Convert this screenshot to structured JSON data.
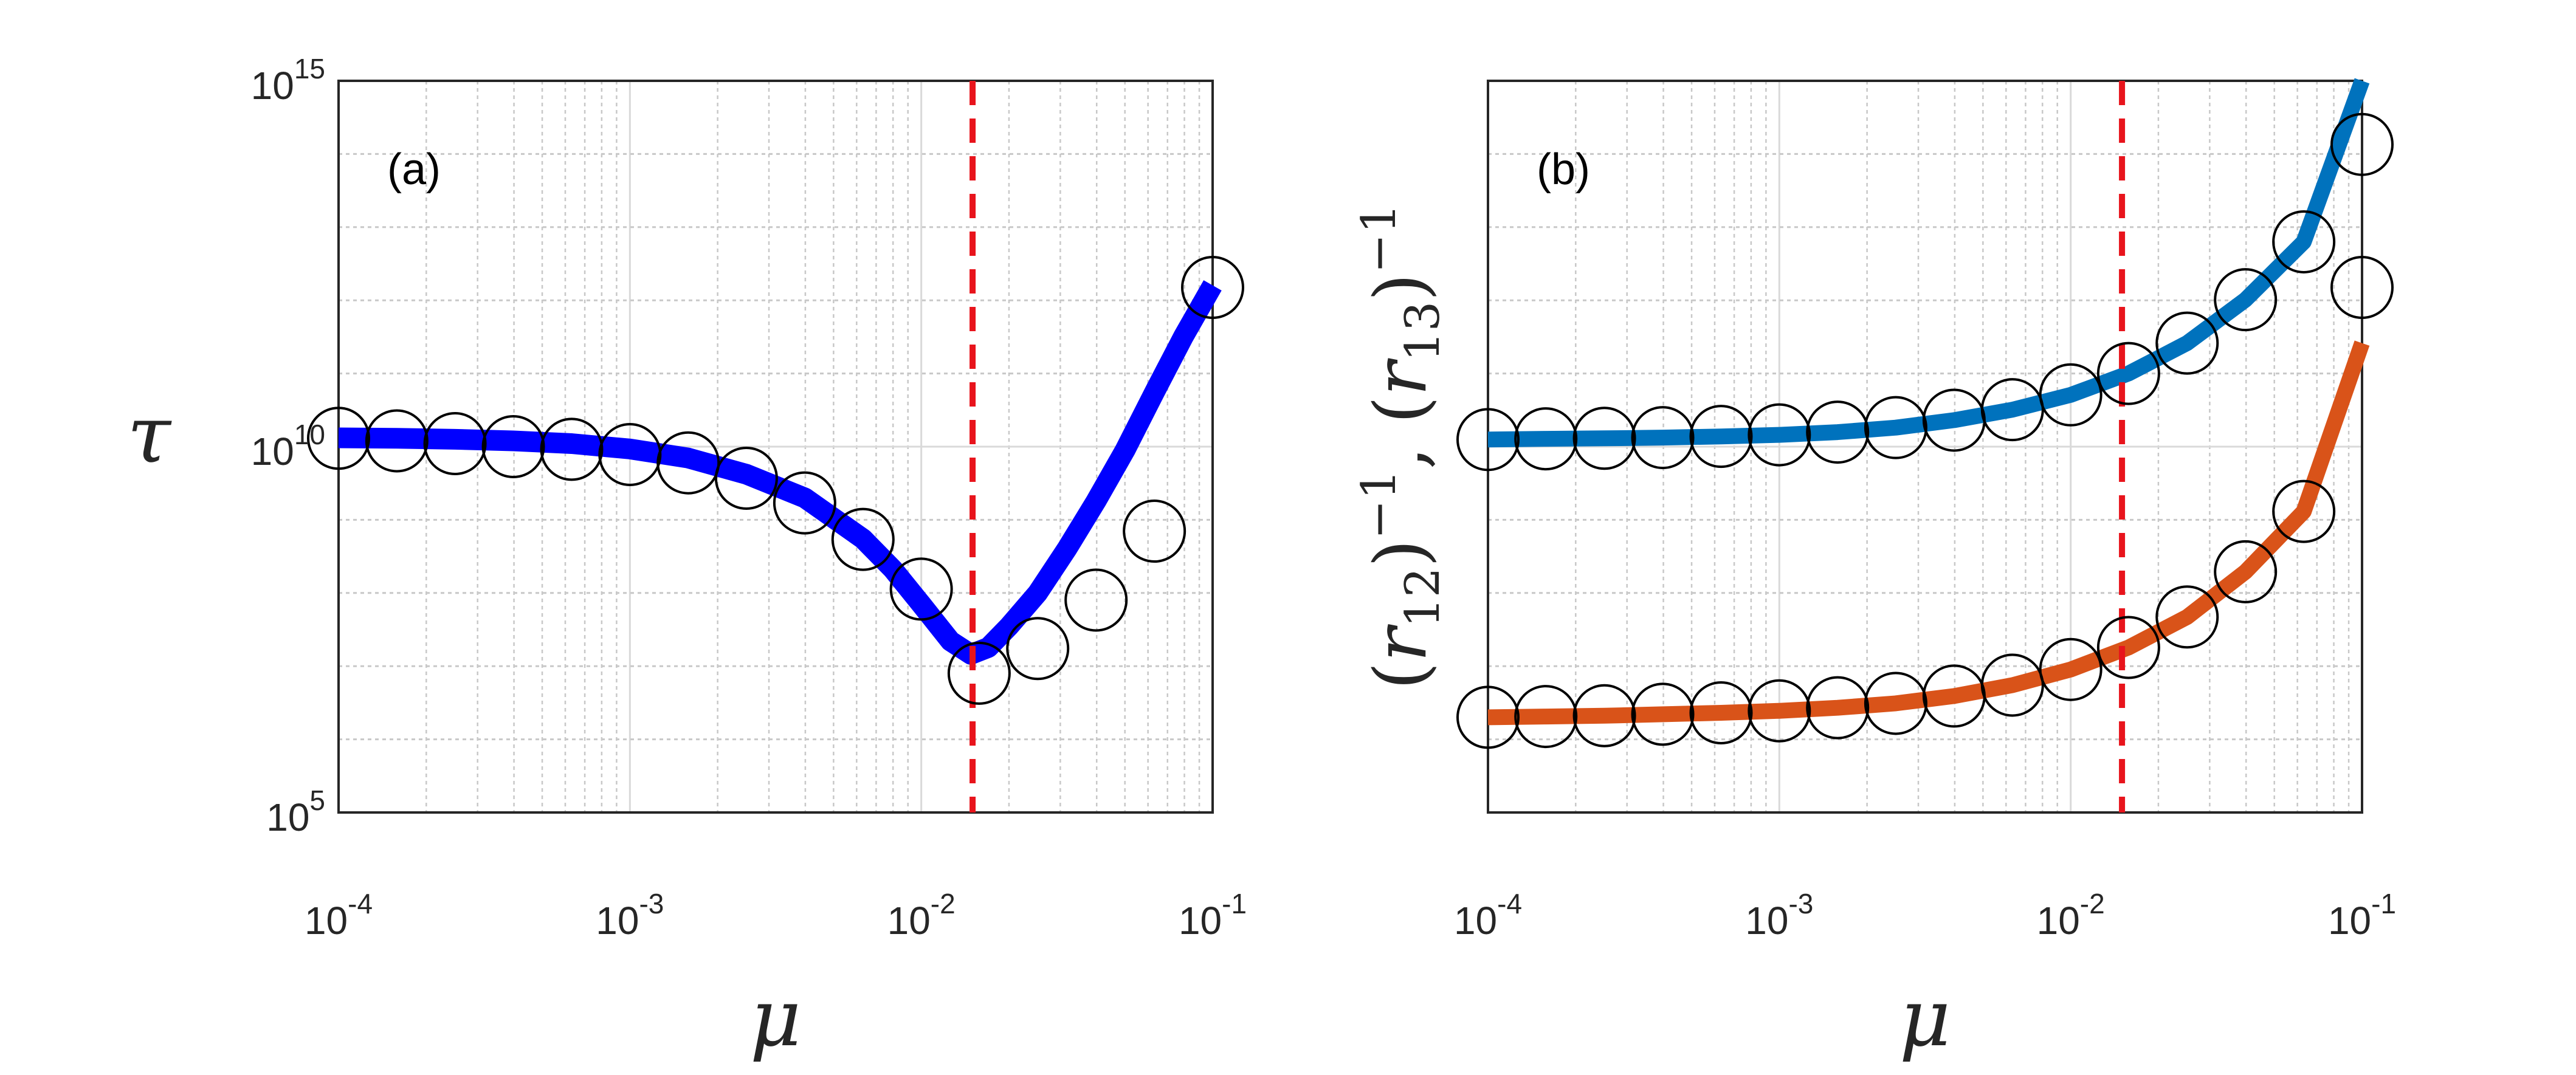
{
  "chart_data": [
    {
      "type": "line",
      "panel_label": "(a)",
      "xscale": "log",
      "yscale": "log",
      "xlim": [
        0.0001,
        0.1
      ],
      "ylim": [
        100000,
        1000000000000000.0
      ],
      "xlabel": "μ",
      "ylabel": "τ",
      "x_ticks": [
        {
          "base": "10",
          "exp": "-4"
        },
        {
          "base": "10",
          "exp": "-3"
        },
        {
          "base": "10",
          "exp": "-2"
        },
        {
          "base": "10",
          "exp": "-1"
        }
      ],
      "y_ticks": [
        {
          "base": "10",
          "exp": "5"
        },
        {
          "base": "10",
          "exp": "10"
        },
        {
          "base": "10",
          "exp": "15"
        }
      ],
      "grid": true,
      "vline": {
        "x": 0.015,
        "color": "#e8141c",
        "style": "dashed"
      },
      "series": [
        {
          "name": "tau_curve",
          "style": "line",
          "color": "#0000ff",
          "x": [
            0.0001,
            0.0001585,
            0.000251,
            0.000398,
            0.000631,
            0.001,
            0.001585,
            0.00251,
            0.00398,
            0.00631,
            0.008,
            0.01,
            0.0126,
            0.0148,
            0.017,
            0.02,
            0.0251,
            0.0316,
            0.0398,
            0.0501,
            0.0631,
            0.0794,
            0.1
          ],
          "y": [
            13200000000.0,
            13000000000.0,
            12600000000.0,
            12000000000.0,
            11000000000.0,
            9300000000.0,
            7000000000.0,
            4200000000.0,
            2000000000.0,
            550000000.0,
            210000000.0,
            70000000.0,
            22000000.0,
            14500000.0,
            18000000.0,
            35000000.0,
            100000000.0,
            400000000.0,
            1800000000.0,
            9000000000.0,
            55000000000.0,
            320000000000.0,
            1600000000000.0
          ]
        },
        {
          "name": "tau_markers",
          "style": "markers",
          "marker": "open-circle",
          "color": "#000000",
          "x": [
            0.0001,
            0.0001585,
            0.000251,
            0.000398,
            0.000631,
            0.001,
            0.001585,
            0.00251,
            0.00398,
            0.00631,
            0.01,
            0.0158,
            0.0251,
            0.0398,
            0.0631,
            0.1
          ],
          "y": [
            13000000000.0,
            12000000000.0,
            11000000000.0,
            10000000000.0,
            9200000000.0,
            7800000000.0,
            6000000000.0,
            3700000000.0,
            1700000000.0,
            540000000.0,
            113000000.0,
            8000000.0,
            17400000.0,
            80000000.0,
            700000000.0,
            1500000000000.0
          ]
        }
      ]
    },
    {
      "type": "line",
      "panel_label": "(b)",
      "xscale": "log",
      "yscale": "log",
      "xlim": [
        0.0001,
        0.1
      ],
      "ylim": [
        100000,
        1000000000000000.0
      ],
      "xlabel": "μ",
      "ylabel": {
        "p1": "(",
        "v1": "r",
        "s1": "12",
        "p2": ")",
        "e1": "−1",
        "sep": ", ",
        "p3": "(",
        "v2": "r",
        "s2": "13",
        "p4": ")",
        "e2": "−1"
      },
      "x_ticks": [
        {
          "base": "10",
          "exp": "-4"
        },
        {
          "base": "10",
          "exp": "-3"
        },
        {
          "base": "10",
          "exp": "-2"
        },
        {
          "base": "10",
          "exp": "-1"
        }
      ],
      "grid": true,
      "vline": {
        "x": 0.015,
        "color": "#e8141c",
        "style": "dashed"
      },
      "series": [
        {
          "name": "(r13)^-1",
          "style": "line",
          "color": "#0072bd",
          "x": [
            0.0001,
            0.000158,
            0.000251,
            0.000398,
            0.000631,
            0.001,
            0.001585,
            0.00251,
            0.00398,
            0.00631,
            0.01,
            0.0158,
            0.0251,
            0.0398,
            0.0631,
            0.1
          ],
          "y": [
            12500000000.0,
            12800000000.0,
            13000000000.0,
            13300000000.0,
            13800000000.0,
            14500000000.0,
            15800000000.0,
            18200000000.0,
            23000000000.0,
            32000000000.0,
            51000000000.0,
            100000000000.0,
            260000000000.0,
            1020000000000.0,
            6300000000000.0,
            1000000000000000.0
          ]
        },
        {
          "name": "(r13)^-1 markers",
          "style": "markers",
          "marker": "open-circle",
          "color": "#000000",
          "x": [
            0.0001,
            0.000158,
            0.000251,
            0.000398,
            0.000631,
            0.001,
            0.001585,
            0.00251,
            0.00398,
            0.00631,
            0.01,
            0.0158,
            0.0251,
            0.0398,
            0.0631,
            0.1
          ],
          "y": [
            12500000000.0,
            12800000000.0,
            13000000000.0,
            13300000000.0,
            13800000000.0,
            14500000000.0,
            15800000000.0,
            18200000000.0,
            23000000000.0,
            32000000000.0,
            51000000000.0,
            100000000000.0,
            260000000000.0,
            1020000000000.0,
            6300000000000.0,
            135000000000000.0
          ]
        },
        {
          "name": "(r12)^-1",
          "style": "line",
          "color": "#d95319",
          "x": [
            0.0001,
            0.000158,
            0.000251,
            0.000398,
            0.000631,
            0.001,
            0.001585,
            0.00251,
            0.00398,
            0.00631,
            0.01,
            0.0158,
            0.0251,
            0.0398,
            0.0631,
            0.1
          ],
          "y": [
            2000000.0,
            2050000.0,
            2100000.0,
            2200000.0,
            2300000.0,
            2450000.0,
            2700000.0,
            3100000.0,
            3900000.0,
            5500000.0,
            9000000.0,
            18000000.0,
            47000000.0,
            195000000.0,
            1300000000.0,
            260000000000.0
          ]
        },
        {
          "name": "(r12)^-1 markers",
          "style": "markers",
          "marker": "open-circle",
          "color": "#000000",
          "x": [
            0.0001,
            0.000158,
            0.000251,
            0.000398,
            0.000631,
            0.001,
            0.001585,
            0.00251,
            0.00398,
            0.00631,
            0.01,
            0.0158,
            0.0251,
            0.0398,
            0.0631,
            0.1
          ],
          "y": [
            2000000.0,
            2050000.0,
            2100000.0,
            2200000.0,
            2300000.0,
            2450000.0,
            2700000.0,
            3100000.0,
            3900000.0,
            5500000.0,
            9000000.0,
            18000000.0,
            47000000.0,
            195000000.0,
            1300000000.0,
            1500000000000.0
          ]
        }
      ]
    }
  ]
}
